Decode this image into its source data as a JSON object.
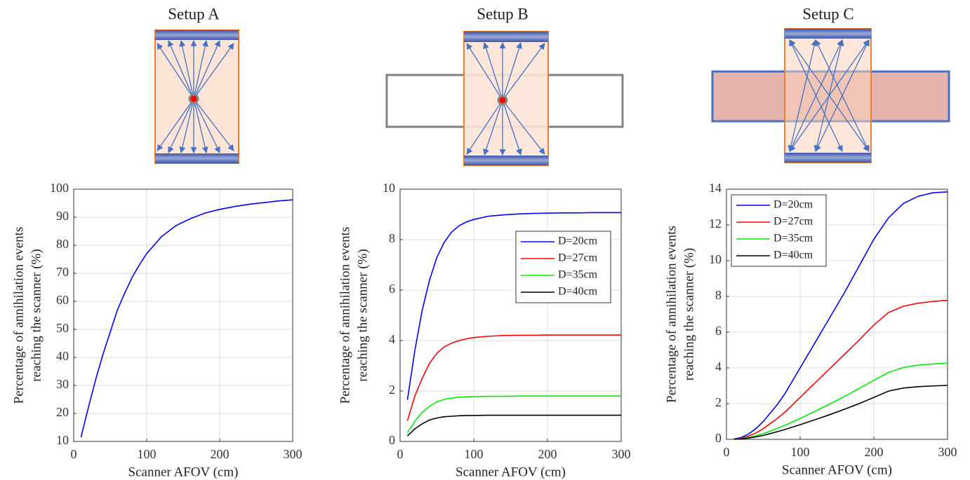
{
  "chart_data": [
    {
      "type": "line",
      "title": "Setup A",
      "xlabel": "Scanner AFOV (cm)",
      "ylabel": [
        "Percentage of annihilation events",
        "reaching the scanner (%)"
      ],
      "x": [
        10,
        20,
        30,
        40,
        50,
        60,
        70,
        80,
        90,
        100,
        120,
        140,
        160,
        180,
        200,
        220,
        240,
        260,
        280,
        300
      ],
      "series": [
        {
          "color": "#0000ff",
          "values": [
            11.5,
            22,
            32,
            41,
            49,
            57,
            63,
            68.5,
            73,
            77,
            83,
            87,
            89.5,
            91.5,
            92.8,
            93.8,
            94.6,
            95.2,
            95.8,
            96.2
          ]
        }
      ],
      "xlim": [
        0,
        300
      ],
      "xticks": [
        0,
        100,
        200,
        300
      ],
      "ylim": [
        10,
        100
      ],
      "yticks": [
        10,
        20,
        30,
        40,
        50,
        60,
        70,
        80,
        90,
        100
      ],
      "grid": true
    },
    {
      "type": "line",
      "title": "Setup B",
      "xlabel": "Scanner AFOV (cm)",
      "ylabel": [
        "Percentage of annihilation events",
        "reaching the scanner (%)"
      ],
      "x": [
        10,
        20,
        30,
        40,
        50,
        60,
        70,
        80,
        90,
        100,
        120,
        140,
        160,
        180,
        200,
        220,
        240,
        260,
        280,
        300
      ],
      "series": [
        {
          "name": "D=20cm",
          "color": "#0000ff",
          "values": [
            1.65,
            3.6,
            5.2,
            6.4,
            7.3,
            7.9,
            8.3,
            8.55,
            8.7,
            8.8,
            8.93,
            8.98,
            9.02,
            9.04,
            9.05,
            9.06,
            9.06,
            9.07,
            9.07,
            9.07
          ]
        },
        {
          "name": "D=27cm",
          "color": "#ff0000",
          "values": [
            0.82,
            1.8,
            2.5,
            3.1,
            3.5,
            3.75,
            3.9,
            4.0,
            4.07,
            4.12,
            4.17,
            4.2,
            4.21,
            4.21,
            4.22,
            4.22,
            4.22,
            4.22,
            4.22,
            4.22
          ]
        },
        {
          "name": "D=35cm",
          "color": "#00ee00",
          "values": [
            0.35,
            0.8,
            1.15,
            1.4,
            1.57,
            1.67,
            1.72,
            1.75,
            1.77,
            1.78,
            1.79,
            1.79,
            1.8,
            1.8,
            1.8,
            1.8,
            1.8,
            1.8,
            1.8,
            1.8
          ]
        },
        {
          "name": "D=40cm",
          "color": "#000000",
          "values": [
            0.22,
            0.5,
            0.7,
            0.85,
            0.93,
            0.98,
            1.0,
            1.02,
            1.03,
            1.03,
            1.04,
            1.04,
            1.04,
            1.04,
            1.04,
            1.04,
            1.04,
            1.04,
            1.04,
            1.04
          ]
        }
      ],
      "xlim": [
        0,
        300
      ],
      "xticks": [
        0,
        100,
        200,
        300
      ],
      "ylim": [
        0,
        10
      ],
      "yticks": [
        0,
        2,
        4,
        6,
        8,
        10
      ],
      "grid": true,
      "legend": "upper right"
    },
    {
      "type": "line",
      "title": "Setup C",
      "xlabel": "Scanner AFOV (cm)",
      "ylabel": [
        "Percentage of annihilation events",
        "reaching the scanner (%)"
      ],
      "x": [
        10,
        20,
        30,
        40,
        50,
        60,
        70,
        80,
        90,
        100,
        120,
        140,
        160,
        180,
        200,
        220,
        240,
        260,
        280,
        300
      ],
      "series": [
        {
          "name": "D=20cm",
          "color": "#0000ff",
          "values": [
            0.02,
            0.1,
            0.3,
            0.6,
            1.0,
            1.5,
            2.0,
            2.6,
            3.3,
            4.0,
            5.4,
            6.8,
            8.2,
            9.7,
            11.2,
            12.4,
            13.2,
            13.6,
            13.8,
            13.85
          ]
        },
        {
          "name": "D=27cm",
          "color": "#ff0000",
          "values": [
            0.01,
            0.06,
            0.18,
            0.36,
            0.6,
            0.9,
            1.2,
            1.55,
            1.95,
            2.35,
            3.15,
            3.95,
            4.75,
            5.55,
            6.4,
            7.1,
            7.45,
            7.62,
            7.72,
            7.78
          ]
        },
        {
          "name": "D=35cm",
          "color": "#00ee00",
          "values": [
            0.01,
            0.04,
            0.1,
            0.2,
            0.32,
            0.47,
            0.63,
            0.8,
            0.98,
            1.17,
            1.57,
            1.97,
            2.4,
            2.85,
            3.3,
            3.75,
            4.02,
            4.15,
            4.22,
            4.27
          ]
        },
        {
          "name": "D=40cm",
          "color": "#000000",
          "values": [
            0.01,
            0.03,
            0.07,
            0.14,
            0.22,
            0.33,
            0.44,
            0.56,
            0.69,
            0.82,
            1.1,
            1.38,
            1.68,
            2.0,
            2.35,
            2.7,
            2.87,
            2.95,
            2.99,
            3.02
          ]
        }
      ],
      "xlim": [
        0,
        300
      ],
      "xticks": [
        0,
        100,
        200,
        300
      ],
      "ylim": [
        0,
        14
      ],
      "yticks": [
        0,
        2,
        4,
        6,
        8,
        10,
        12,
        14
      ],
      "grid": true,
      "legend": "upper left"
    }
  ]
}
